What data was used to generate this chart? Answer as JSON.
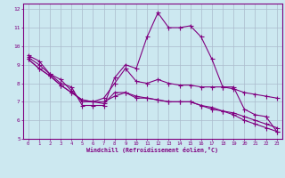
{
  "xlabel": "Windchill (Refroidissement éolien,°C)",
  "bg_color": "#cce8f0",
  "line_color": "#800080",
  "grid_color": "#aabbcc",
  "text_color": "#800080",
  "xlim": [
    -0.5,
    23.5
  ],
  "ylim": [
    5,
    12.3
  ],
  "yticks": [
    5,
    6,
    7,
    8,
    9,
    10,
    11,
    12
  ],
  "xticks": [
    0,
    1,
    2,
    3,
    4,
    5,
    6,
    7,
    8,
    9,
    10,
    11,
    12,
    13,
    14,
    15,
    16,
    17,
    18,
    19,
    20,
    21,
    22,
    23
  ],
  "line1_x": [
    0,
    1,
    2,
    3,
    4,
    5,
    6,
    7,
    8,
    9,
    10,
    11,
    12,
    13,
    14,
    15,
    16,
    17,
    18,
    19,
    20,
    21,
    22,
    23
  ],
  "line1_y": [
    9.5,
    9.2,
    8.5,
    8.0,
    7.8,
    6.8,
    6.8,
    6.8,
    8.3,
    9.0,
    8.8,
    10.5,
    11.8,
    11.0,
    11.0,
    11.1,
    10.5,
    9.3,
    7.8,
    7.8,
    6.6,
    6.3,
    6.2,
    5.4
  ],
  "line2_x": [
    0,
    1,
    2,
    3,
    4,
    5,
    6,
    7,
    8,
    9,
    10,
    11,
    12,
    13,
    14,
    15,
    16,
    17,
    18,
    19,
    20,
    21,
    22,
    23
  ],
  "line2_y": [
    9.4,
    9.0,
    8.5,
    8.2,
    7.6,
    7.0,
    7.0,
    7.2,
    8.0,
    8.8,
    8.1,
    8.0,
    8.2,
    8.0,
    7.9,
    7.9,
    7.8,
    7.8,
    7.8,
    7.7,
    7.5,
    7.4,
    7.3,
    7.2
  ],
  "line3_x": [
    0,
    1,
    2,
    3,
    4,
    5,
    6,
    7,
    8,
    9,
    10,
    11,
    12,
    13,
    14,
    15,
    16,
    17,
    18,
    19,
    20,
    21,
    22,
    23
  ],
  "line3_y": [
    9.3,
    8.8,
    8.4,
    7.9,
    7.5,
    7.1,
    7.0,
    6.9,
    7.5,
    7.5,
    7.3,
    7.2,
    7.1,
    7.0,
    7.0,
    7.0,
    6.8,
    6.6,
    6.5,
    6.4,
    6.2,
    6.0,
    5.8,
    5.6
  ],
  "line4_x": [
    0,
    1,
    2,
    3,
    4,
    5,
    6,
    7,
    8,
    9,
    10,
    11,
    12,
    13,
    14,
    15,
    16,
    17,
    18,
    19,
    20,
    21,
    22,
    23
  ],
  "line4_y": [
    9.3,
    8.8,
    8.4,
    7.9,
    7.5,
    7.1,
    7.0,
    7.0,
    7.3,
    7.5,
    7.2,
    7.2,
    7.1,
    7.0,
    7.0,
    7.0,
    6.8,
    6.7,
    6.5,
    6.3,
    6.0,
    5.8,
    5.6,
    5.4
  ]
}
